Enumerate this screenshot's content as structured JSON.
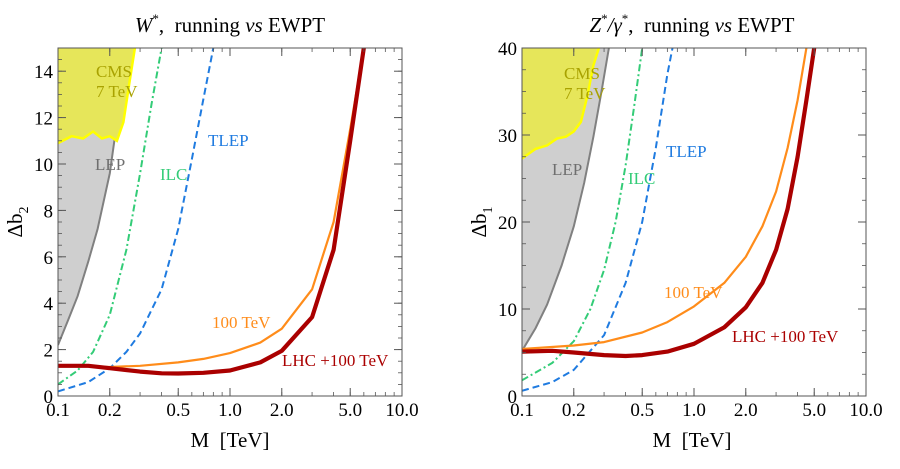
{
  "chart_data": [
    {
      "type": "line",
      "title": "W*,  running vs EWPT",
      "title_parts": {
        "sym": "W",
        "sup": "*",
        "rest": ",  running ",
        "vs": "vs",
        "tail": " EWPT"
      },
      "xlabel": "M  [TeV]",
      "ylabel": "Δb",
      "ylabel_sub": "2",
      "xscale": "log",
      "xlim": [
        0.1,
        10.0
      ],
      "ylim": [
        0,
        15
      ],
      "xticks": [
        0.1,
        0.2,
        0.5,
        1.0,
        2.0,
        5.0,
        10.0
      ],
      "xtick_labels": [
        "0.1",
        "0.2",
        "0.5",
        "1.0",
        "2.0",
        "5.0",
        "10.0"
      ],
      "yticks": [
        0,
        2,
        4,
        6,
        8,
        10,
        12,
        14
      ],
      "ytick_labels": [
        "0",
        "2",
        "4",
        "6",
        "8",
        "10",
        "12",
        "14"
      ],
      "regions": [
        {
          "name": "LEP",
          "label": "LEP",
          "color": "#cfcfcf",
          "edge": "#808080",
          "x": [
            0.1,
            0.115,
            0.13,
            0.15,
            0.17,
            0.2,
            0.23,
            0.26
          ],
          "y": [
            2.2,
            3.3,
            4.3,
            5.8,
            7.2,
            9.6,
            12.8,
            15
          ]
        },
        {
          "name": "CMS",
          "label": "CMS",
          "label2": "7 TeV",
          "color": "#e6e65a",
          "edge": "#ffff00",
          "x": [
            0.1,
            0.12,
            0.14,
            0.16,
            0.18,
            0.2,
            0.22,
            0.24,
            0.26,
            0.28
          ],
          "y": [
            10.9,
            11.2,
            11.1,
            11.4,
            11.1,
            11.2,
            11.0,
            11.8,
            13.5,
            15
          ]
        }
      ],
      "series": [
        {
          "name": "ILC",
          "label": "ILC",
          "color": "#33cc77",
          "style": "dashdot",
          "width": 2,
          "x": [
            0.1,
            0.13,
            0.16,
            0.2,
            0.25,
            0.3,
            0.35,
            0.4
          ],
          "y": [
            0.5,
            1.1,
            1.9,
            3.5,
            6.3,
            9.6,
            12.6,
            15
          ]
        },
        {
          "name": "TLEP",
          "label": "TLEP",
          "color": "#1f7be0",
          "style": "dashed",
          "width": 2,
          "x": [
            0.1,
            0.15,
            0.2,
            0.25,
            0.3,
            0.4,
            0.5,
            0.6,
            0.7,
            0.8
          ],
          "y": [
            0.2,
            0.6,
            1.2,
            1.9,
            2.7,
            4.6,
            7.2,
            10.2,
            12.8,
            15
          ]
        },
        {
          "name": "100 TeV",
          "label": "100 TeV",
          "color": "#ff8c1a",
          "style": "solid",
          "width": 2.2,
          "x": [
            0.1,
            0.2,
            0.3,
            0.5,
            0.7,
            1.0,
            1.5,
            2.0,
            3.0,
            4.0,
            5.0,
            6.0
          ],
          "y": [
            1.3,
            1.25,
            1.3,
            1.45,
            1.6,
            1.85,
            2.3,
            2.9,
            4.6,
            7.5,
            11.5,
            15
          ]
        },
        {
          "name": "LHC +100 TeV",
          "label": "LHC +100 TeV",
          "color": "#aa0000",
          "style": "solid",
          "width": 4.2,
          "x": [
            0.1,
            0.15,
            0.2,
            0.3,
            0.4,
            0.5,
            0.7,
            1.0,
            1.5,
            2.0,
            3.0,
            4.0,
            5.0,
            6.0
          ],
          "y": [
            1.3,
            1.3,
            1.2,
            1.05,
            0.98,
            0.97,
            1.0,
            1.1,
            1.45,
            1.95,
            3.4,
            6.3,
            11.0,
            15
          ]
        }
      ]
    },
    {
      "type": "line",
      "title": "Z*/γ*,  running vs EWPT",
      "title_parts": {
        "sym": "Z",
        "sup": "*",
        "mid": "/γ",
        "sup2": "*",
        "rest": ",  running ",
        "vs": "vs",
        "tail": " EWPT"
      },
      "xlabel": "M  [TeV]",
      "ylabel": "Δb",
      "ylabel_sub": "1",
      "xscale": "log",
      "xlim": [
        0.1,
        10.0
      ],
      "ylim": [
        0,
        40
      ],
      "xticks": [
        0.1,
        0.2,
        0.5,
        1.0,
        2.0,
        5.0,
        10.0
      ],
      "xtick_labels": [
        "0.1",
        "0.2",
        "0.5",
        "1.0",
        "2.0",
        "5.0",
        "10.0"
      ],
      "yticks": [
        0,
        10,
        20,
        30,
        40
      ],
      "ytick_labels": [
        "0",
        "10",
        "20",
        "30",
        "40"
      ],
      "regions": [
        {
          "name": "LEP",
          "label": "LEP",
          "color": "#cfcfcf",
          "edge": "#808080",
          "x": [
            0.1,
            0.12,
            0.14,
            0.17,
            0.2,
            0.23,
            0.26,
            0.29,
            0.32
          ],
          "y": [
            5.2,
            7.8,
            10.5,
            15.0,
            19.5,
            24.5,
            29.8,
            35.0,
            40
          ]
        },
        {
          "name": "CMS",
          "label": "CMS",
          "label2": "7 TeV",
          "color": "#e6e65a",
          "edge": "#ffff00",
          "x": [
            0.1,
            0.12,
            0.14,
            0.16,
            0.18,
            0.2,
            0.22,
            0.24,
            0.26,
            0.28
          ],
          "y": [
            27.3,
            28.4,
            28.8,
            29.6,
            29.8,
            30.4,
            31.5,
            34.5,
            38.0,
            40
          ]
        }
      ],
      "series": [
        {
          "name": "ILC",
          "label": "ILC",
          "color": "#33cc77",
          "style": "dashdot",
          "width": 2,
          "x": [
            0.1,
            0.15,
            0.2,
            0.25,
            0.3,
            0.35,
            0.4,
            0.45,
            0.5
          ],
          "y": [
            1.8,
            3.8,
            6.3,
            10.0,
            14.5,
            20.0,
            26.5,
            33.5,
            40
          ]
        },
        {
          "name": "TLEP",
          "label": "TLEP",
          "color": "#1f7be0",
          "style": "dashed",
          "width": 2,
          "x": [
            0.1,
            0.15,
            0.2,
            0.3,
            0.4,
            0.5,
            0.6,
            0.7,
            0.75
          ],
          "y": [
            0.6,
            1.6,
            3.0,
            7.0,
            13.0,
            20.0,
            28.5,
            37.0,
            40
          ]
        },
        {
          "name": "100 TeV",
          "label": "100 TeV",
          "color": "#ff8c1a",
          "style": "solid",
          "width": 2.2,
          "x": [
            0.1,
            0.2,
            0.3,
            0.5,
            0.7,
            1.0,
            1.5,
            2.0,
            2.5,
            3.0,
            3.5,
            4.0,
            4.5
          ],
          "y": [
            5.4,
            5.8,
            6.2,
            7.3,
            8.5,
            10.3,
            13.0,
            16.0,
            19.5,
            23.5,
            28.5,
            34.0,
            40
          ]
        },
        {
          "name": "LHC +100 TeV",
          "label": "LHC +100 TeV",
          "color": "#aa0000",
          "style": "solid",
          "width": 4.2,
          "x": [
            0.1,
            0.15,
            0.2,
            0.3,
            0.4,
            0.5,
            0.7,
            1.0,
            1.5,
            2.0,
            2.5,
            3.0,
            3.5,
            4.0,
            4.5,
            5.0
          ],
          "y": [
            5.1,
            5.2,
            5.0,
            4.7,
            4.6,
            4.7,
            5.1,
            6.0,
            7.9,
            10.2,
            13.0,
            16.8,
            21.5,
            27.5,
            34.0,
            40
          ]
        }
      ]
    }
  ]
}
